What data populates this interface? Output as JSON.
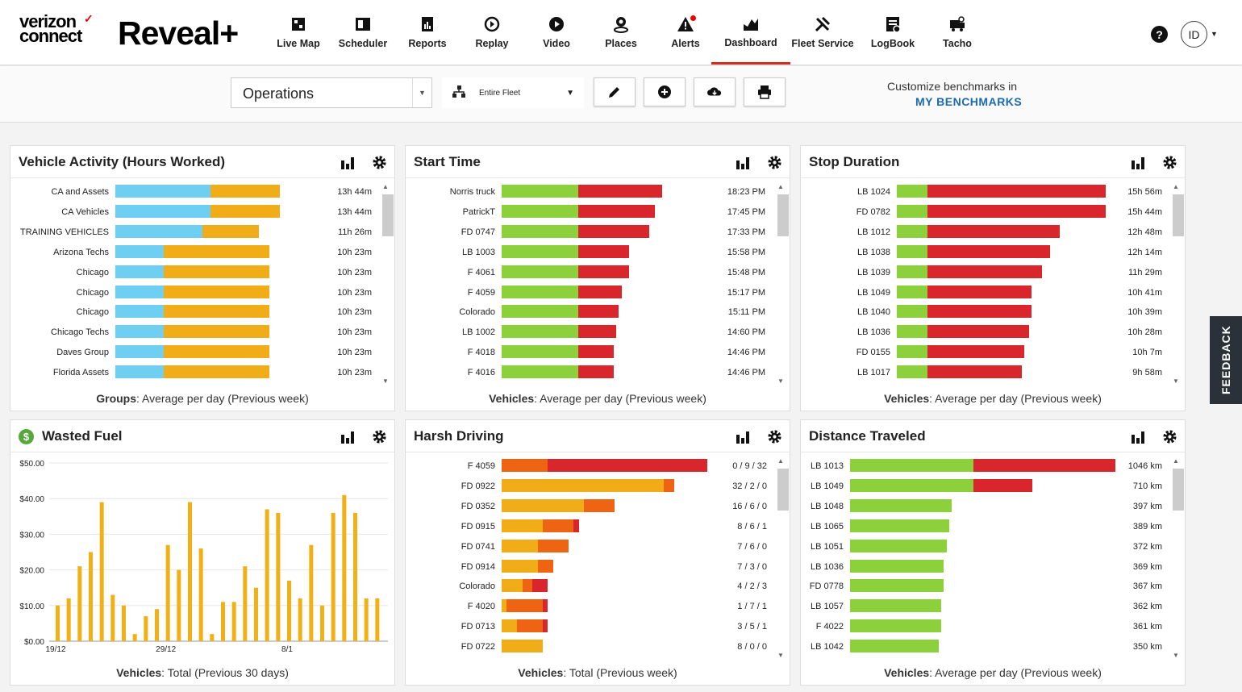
{
  "brand": {
    "logo_line1": "verizon",
    "logo_line2": "connect",
    "product": "Reveal+"
  },
  "nav": [
    {
      "label": "Live Map",
      "icon": "live-map-icon"
    },
    {
      "label": "Scheduler",
      "icon": "scheduler-icon"
    },
    {
      "label": "Reports",
      "icon": "reports-icon"
    },
    {
      "label": "Replay",
      "icon": "replay-icon"
    },
    {
      "label": "Video",
      "icon": "video-icon"
    },
    {
      "label": "Places",
      "icon": "places-icon"
    },
    {
      "label": "Alerts",
      "icon": "alerts-icon"
    },
    {
      "label": "Dashboard",
      "icon": "dashboard-icon",
      "active": true
    },
    {
      "label": "Fleet Service",
      "icon": "fleet-service-icon"
    },
    {
      "label": "LogBook",
      "icon": "logbook-icon"
    },
    {
      "label": "Tacho",
      "icon": "tacho-icon"
    }
  ],
  "header": {
    "help": "?",
    "avatar": "ID"
  },
  "toolbar": {
    "dashboard_select": "Operations",
    "fleet_select": "Entire Fleet",
    "bench_line1": "Customize benchmarks in",
    "bench_link": "MY BENCHMARKS"
  },
  "colors": {
    "blue": "#6ecff2",
    "orange": "#f0ad18",
    "green": "#8cd03c",
    "red": "#d9262c",
    "darkorange": "#ee6412",
    "brand_red": "#d52b1e"
  },
  "panels": {
    "vehicle_activity": {
      "title": "Vehicle Activity (Hours Worked)",
      "footer_bold": "Groups",
      "footer_rest": ": Average per day (Previous week)",
      "rows": [
        {
          "label": "CA and Assets",
          "a": 0.37,
          "b": 0.64,
          "value": "13h 44m"
        },
        {
          "label": "CA Vehicles",
          "a": 0.37,
          "b": 0.64,
          "value": "13h 44m"
        },
        {
          "label": "TRAINING VEHICLES",
          "a": 0.34,
          "b": 0.56,
          "value": "11h 26m"
        },
        {
          "label": "Arizona Techs",
          "a": 0.19,
          "b": 0.6,
          "value": "10h 23m"
        },
        {
          "label": "Chicago",
          "a": 0.19,
          "b": 0.6,
          "value": "10h 23m"
        },
        {
          "label": "Chicago",
          "a": 0.19,
          "b": 0.6,
          "value": "10h 23m"
        },
        {
          "label": "Chicago",
          "a": 0.19,
          "b": 0.6,
          "value": "10h 23m"
        },
        {
          "label": "Chicago Techs",
          "a": 0.19,
          "b": 0.6,
          "value": "10h 23m"
        },
        {
          "label": "Daves Group",
          "a": 0.19,
          "b": 0.6,
          "value": "10h 23m"
        },
        {
          "label": "Florida Assets",
          "a": 0.19,
          "b": 0.6,
          "value": "10h 23m"
        }
      ]
    },
    "start_time": {
      "title": "Start Time",
      "footer_bold": "Vehicles",
      "footer_rest": ": Average per day (Previous week)",
      "rows": [
        {
          "label": "Norris truck",
          "a": 0.3,
          "b": 0.63,
          "value": "18:23 PM"
        },
        {
          "label": "PatrickT",
          "a": 0.3,
          "b": 0.6,
          "value": "17:45 PM"
        },
        {
          "label": "FD 0747",
          "a": 0.3,
          "b": 0.58,
          "value": "17:33 PM"
        },
        {
          "label": "LB 1003",
          "a": 0.3,
          "b": 0.5,
          "value": "15:58 PM"
        },
        {
          "label": "F 4061",
          "a": 0.3,
          "b": 0.5,
          "value": "15:48 PM"
        },
        {
          "label": "F 4059",
          "a": 0.3,
          "b": 0.47,
          "value": "15:17 PM"
        },
        {
          "label": "Colorado",
          "a": 0.3,
          "b": 0.46,
          "value": "15:11 PM"
        },
        {
          "label": "LB 1002",
          "a": 0.3,
          "b": 0.45,
          "value": "14:60 PM"
        },
        {
          "label": "F 4018",
          "a": 0.3,
          "b": 0.44,
          "value": "14:46 PM"
        },
        {
          "label": "F 4016",
          "a": 0.3,
          "b": 0.44,
          "value": "14:46 PM"
        }
      ]
    },
    "stop_duration": {
      "title": "Stop Duration",
      "footer_bold": "Vehicles",
      "footer_rest": ": Average per day (Previous week)",
      "rows": [
        {
          "label": "LB 1024",
          "a": 0.12,
          "b": 0.82,
          "value": "15h 56m"
        },
        {
          "label": "FD 0782",
          "a": 0.12,
          "b": 0.82,
          "value": "15h 44m"
        },
        {
          "label": "LB 1012",
          "a": 0.12,
          "b": 0.64,
          "value": "12h 48m"
        },
        {
          "label": "LB 1038",
          "a": 0.12,
          "b": 0.6,
          "value": "12h 14m"
        },
        {
          "label": "LB 1039",
          "a": 0.12,
          "b": 0.57,
          "value": "11h 29m"
        },
        {
          "label": "LB 1049",
          "a": 0.12,
          "b": 0.53,
          "value": "10h 41m"
        },
        {
          "label": "LB 1040",
          "a": 0.12,
          "b": 0.53,
          "value": "10h 39m"
        },
        {
          "label": "LB 1036",
          "a": 0.12,
          "b": 0.52,
          "value": "10h 28m"
        },
        {
          "label": "FD 0155",
          "a": 0.12,
          "b": 0.5,
          "value": "10h 7m"
        },
        {
          "label": "LB 1017",
          "a": 0.12,
          "b": 0.49,
          "value": "9h 58m"
        }
      ]
    },
    "harsh_driving": {
      "title": "Harsh Driving",
      "footer_bold": "Vehicles",
      "footer_rest": ": Total (Previous week)",
      "rows": [
        {
          "label": "F 4059",
          "o": 0.0,
          "d": 0.18,
          "r": 0.62,
          "value": "0 / 9 / 32"
        },
        {
          "label": "FD 0922",
          "o": 0.63,
          "d": 0.04,
          "r": 0.0,
          "value": "32 / 2 / 0"
        },
        {
          "label": "FD 0352",
          "o": 0.32,
          "d": 0.12,
          "r": 0.0,
          "value": "16 / 6 / 0"
        },
        {
          "label": "FD 0915",
          "o": 0.16,
          "d": 0.12,
          "r": 0.02,
          "value": "8 / 6 / 1"
        },
        {
          "label": "FD 0741",
          "o": 0.14,
          "d": 0.12,
          "r": 0.0,
          "value": "7 / 6 / 0"
        },
        {
          "label": "FD 0914",
          "o": 0.14,
          "d": 0.06,
          "r": 0.0,
          "value": "7 / 3 / 0"
        },
        {
          "label": "Colorado",
          "o": 0.08,
          "d": 0.04,
          "r": 0.06,
          "value": "4 / 2 / 3"
        },
        {
          "label": "F 4020",
          "o": 0.02,
          "d": 0.14,
          "r": 0.02,
          "value": "1 / 7 / 1"
        },
        {
          "label": "FD 0713",
          "o": 0.06,
          "d": 0.1,
          "r": 0.02,
          "value": "3 / 5 / 1"
        },
        {
          "label": "FD 0722",
          "o": 0.16,
          "d": 0.0,
          "r": 0.0,
          "value": "8 / 0 / 0"
        }
      ]
    },
    "distance": {
      "title": "Distance Traveled",
      "footer_bold": "Vehicles",
      "footer_rest": ": Average per day (Previous week)",
      "rows": [
        {
          "label": "LB 1013",
          "a": 0.46,
          "b": 0.99,
          "value": "1046 km"
        },
        {
          "label": "LB 1049",
          "a": 0.46,
          "b": 0.68,
          "value": "710 km"
        },
        {
          "label": "LB 1048",
          "a": 0.38,
          "b": 0.38,
          "value": "397 km"
        },
        {
          "label": "LB 1065",
          "a": 0.37,
          "b": 0.37,
          "value": "389 km"
        },
        {
          "label": "LB 1051",
          "a": 0.36,
          "b": 0.36,
          "value": "372 km"
        },
        {
          "label": "LB 1036",
          "a": 0.35,
          "b": 0.35,
          "value": "369 km"
        },
        {
          "label": "FD 0778",
          "a": 0.35,
          "b": 0.35,
          "value": "367 km"
        },
        {
          "label": "LB 1057",
          "a": 0.34,
          "b": 0.34,
          "value": "362 km"
        },
        {
          "label": "F 4022",
          "a": 0.34,
          "b": 0.34,
          "value": "361 km"
        },
        {
          "label": "LB 1042",
          "a": 0.33,
          "b": 0.33,
          "value": "350 km"
        }
      ]
    },
    "wasted_fuel": {
      "title": "Wasted Fuel",
      "footer_bold": "Vehicles",
      "footer_rest": ": Total (Previous 30 days)"
    }
  },
  "feedback": "FEEDBACK",
  "chart_data": {
    "type": "bar",
    "title": "Wasted Fuel",
    "yticks": [
      "$0.00",
      "$10.00",
      "$20.00",
      "$30.00",
      "$40.00",
      "$50.00"
    ],
    "ylim": [
      0,
      50
    ],
    "xticks": [
      "19/12",
      "29/12",
      "8/1"
    ],
    "values": [
      10,
      12,
      21,
      25,
      39,
      13,
      10,
      2,
      7,
      9,
      27,
      20,
      39,
      26,
      2,
      11,
      11,
      21,
      15,
      37,
      36,
      17,
      12,
      27,
      10,
      36,
      41,
      36,
      12,
      12
    ],
    "color": "#f0b016",
    "grid": true
  }
}
